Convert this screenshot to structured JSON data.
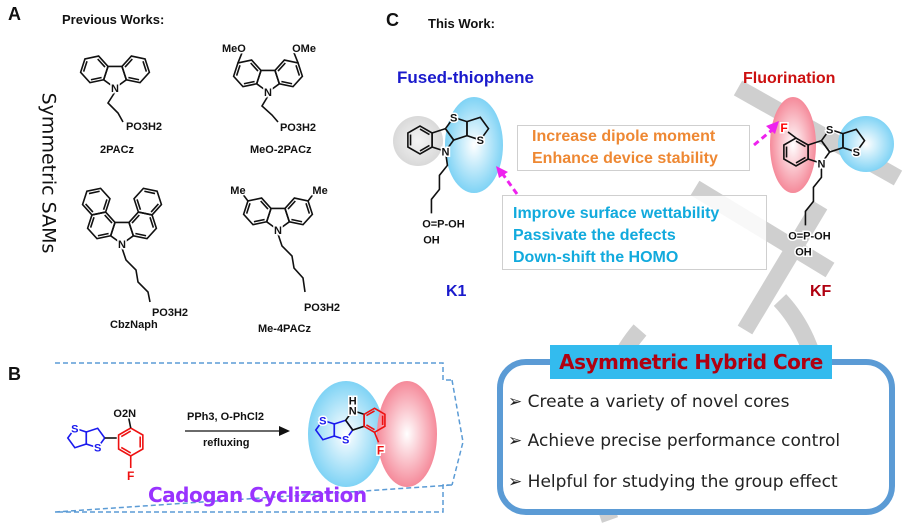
{
  "panel_a": {
    "letter": "A",
    "heading": "Previous Works:",
    "side_label": "Symmetric SAMs",
    "molecules": [
      {
        "name": "2PACz",
        "substituent": "",
        "anchor": "PO3H2"
      },
      {
        "name": "MeO-2PACz",
        "substituent": "MeO / OMe",
        "anchor": "PO3H2"
      },
      {
        "name": "CbzNaph",
        "substituent": "",
        "anchor": "PO3H2"
      },
      {
        "name": "Me-4PACz",
        "substituent": "Me / Me",
        "anchor": "PO3H2"
      }
    ],
    "atoms": {
      "n": "N",
      "meo": "MeO",
      "ome": "OMe",
      "me": "Me"
    }
  },
  "panel_c": {
    "letter": "C",
    "heading": "This Work:",
    "fused_label": "Fused-thiophene",
    "fluor_label": "Fluorination",
    "orange_box": [
      "Increase dipole moment",
      "Enhance device stability"
    ],
    "cyan_box": [
      "Improve surface wettability",
      "Passivate the defects",
      "Down-shift the HOMO"
    ],
    "k1": "K1",
    "kf": "KF",
    "atoms": {
      "s": "S",
      "n": "N",
      "f": "F",
      "phos": "O=P-OH",
      "oh": "OH"
    }
  },
  "panel_b": {
    "letter": "B",
    "reagents": "PPh3, O-PhCl2",
    "conditions": "refluxing",
    "reaction_name": "Cadogan Cyclization",
    "atoms": {
      "no2": "O2N",
      "s": "S",
      "f": "F",
      "nh": "H"
    }
  },
  "hybrid_core": {
    "title": "Asymmetric Hybrid Core",
    "bullets": [
      "Create a variety of novel cores",
      "Achieve precise performance control",
      "Helpful for studying the group effect"
    ],
    "bullet_icon": "arrowhead-bullet-icon"
  },
  "colors": {
    "blue_label": "#1a1acc",
    "red_label": "#cc1111",
    "orange_text": "#ee8833",
    "cyan_text": "#11aadd",
    "magenta_arrow": "#ee22ee",
    "purple_title": "#9933ff",
    "core_border": "#5b9bd5",
    "core_title_bg": "#33bbee",
    "core_title_text": "#b00010"
  }
}
